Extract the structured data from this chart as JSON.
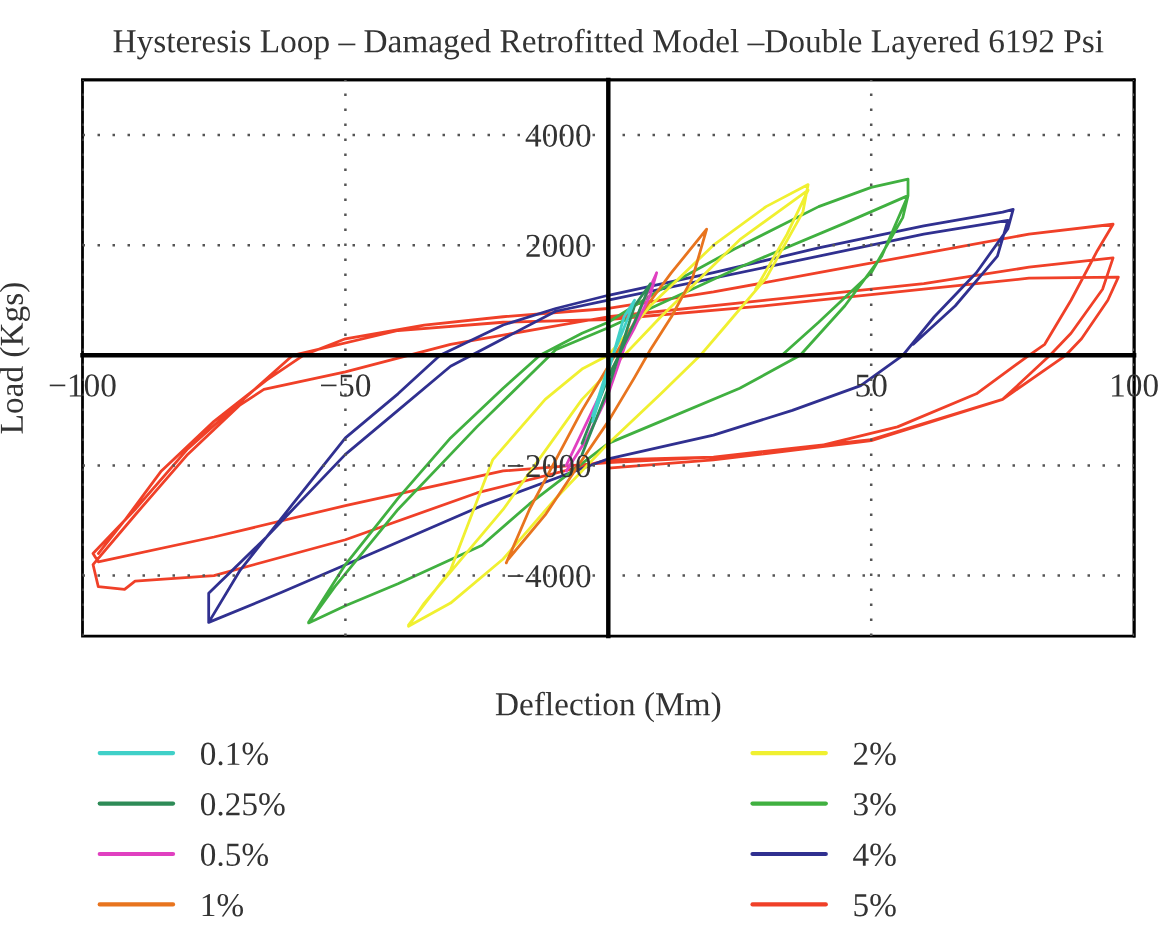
{
  "chart_data": {
    "type": "line",
    "title": "Hysteresis Loop – Damaged Retrofitted Model –Double Layered 6192 Psi",
    "xlabel": "Deflection (Mm)",
    "ylabel": "Load (Kgs)",
    "xlim": [
      -100,
      100
    ],
    "ylim": [
      -5100,
      5000
    ],
    "xticks": [
      {
        "value": -100,
        "label": "−100"
      },
      {
        "value": -50,
        "label": "−50"
      },
      50,
      100
    ],
    "yticks": [
      {
        "value": -4000,
        "label": "−4000"
      },
      {
        "value": -2000,
        "label": "−2000"
      },
      2000,
      4000
    ],
    "grid": true,
    "legend": "bottom",
    "marker": "none",
    "line_style": "solid",
    "series": [
      {
        "name": "0.1%",
        "color": "#40d0c8",
        "x": [
          -3,
          0,
          3,
          5,
          3,
          0,
          -3
        ],
        "values": [
          -1200,
          -300,
          700,
          1000,
          500,
          -200,
          -1100
        ]
      },
      {
        "name": "0.25%",
        "color": "#2e8b57",
        "x": [
          -5,
          0,
          5,
          8,
          5,
          0,
          -5
        ],
        "values": [
          -1800,
          -600,
          900,
          1300,
          600,
          -400,
          -1600
        ]
      },
      {
        "name": "0.5%",
        "color": "#e040c0",
        "x": [
          -8,
          -4,
          0,
          4,
          9.2,
          8,
          5,
          1,
          -3,
          -8
        ],
        "values": [
          -2100,
          -1500,
          -700,
          400,
          1500,
          1100,
          500,
          -200,
          -1000,
          -2000
        ]
      },
      {
        "name": "1%",
        "color": "#e8741e",
        "x": [
          -19.4,
          -15,
          -10,
          -5,
          0,
          5,
          12,
          18.7,
          16,
          12,
          8,
          5,
          0,
          -5,
          -12,
          -19
        ],
        "values": [
          -3770,
          -2800,
          -1900,
          -1000,
          -200,
          600,
          1500,
          2290,
          1400,
          700,
          100,
          -400,
          -1200,
          -1900,
          -2900,
          -3700
        ]
      },
      {
        "name": "2%",
        "color": "#f0f030",
        "x": [
          -38,
          -30,
          -22,
          -12,
          -5,
          0,
          8,
          20,
          30,
          38,
          37,
          30,
          22,
          17.5,
          10,
          0,
          -10,
          -20,
          -30,
          -38,
          -35,
          -20,
          -5,
          10,
          25,
          38,
          34,
          28
        ],
        "values": [
          -4900,
          -3900,
          -1900,
          -800,
          -250,
          0,
          900,
          2000,
          2700,
          3100,
          2600,
          1400,
          500,
          0,
          -700,
          -1600,
          -2600,
          -3700,
          -4500,
          -4920,
          -4500,
          -2800,
          -800,
          700,
          2100,
          3000,
          2200,
          1200
        ]
      },
      {
        "name": "3%",
        "color": "#40b040",
        "x": [
          -57,
          -50,
          -40,
          -30,
          -20,
          -13,
          -5,
          0,
          10,
          24,
          40,
          50,
          57,
          57,
          52,
          45,
          36.5,
          25,
          10,
          0,
          -15,
          -24,
          -40,
          -50,
          -57,
          -52,
          -40,
          -25,
          -10,
          0,
          25,
          45,
          57,
          56,
          50,
          40,
          33
        ],
        "values": [
          -4850,
          -3800,
          -2600,
          -1500,
          -600,
          0,
          400,
          600,
          1200,
          1930,
          2700,
          3050,
          3200,
          2900,
          1800,
          900,
          0,
          -600,
          -1200,
          -1600,
          -2700,
          -3450,
          -4150,
          -4550,
          -4860,
          -4200,
          -2800,
          -1300,
          100,
          500,
          1600,
          2400,
          2900,
          2500,
          1500,
          600,
          0
        ]
      },
      {
        "name": "4%",
        "color": "#303090",
        "x": [
          -76,
          -70,
          -60,
          -50,
          -40,
          -32,
          -20,
          -10,
          0,
          20,
          40,
          60,
          75,
          77,
          76,
          70,
          62,
          56,
          48,
          35,
          20,
          0,
          -24,
          -45,
          -62,
          -76,
          -76,
          -65,
          -50,
          -40,
          -30,
          -10,
          0,
          30,
          60,
          76,
          74,
          66,
          58
        ],
        "values": [
          -4850,
          -3900,
          -2700,
          -1500,
          -700,
          0,
          550,
          850,
          1090,
          1500,
          1950,
          2350,
          2600,
          2650,
          2300,
          1500,
          700,
          0,
          -550,
          -1000,
          -1450,
          -1880,
          -2730,
          -3600,
          -4300,
          -4850,
          -4320,
          -3300,
          -1800,
          -1000,
          -200,
          800,
          1000,
          1600,
          2200,
          2450,
          1800,
          900,
          200
        ]
      },
      {
        "name": "5%",
        "color": "#f04028",
        "x": [
          -97,
          -92,
          -85,
          -75,
          -65,
          -58,
          -50,
          -35,
          -20,
          0,
          20,
          40,
          60,
          80,
          96,
          93,
          88,
          83,
          80,
          70,
          55,
          40,
          20,
          0,
          -25,
          -50,
          -75,
          -90,
          -92,
          -97,
          -98,
          -90,
          -80,
          -70,
          -65.5,
          -50,
          -30,
          0,
          30,
          60,
          80,
          96,
          94,
          88,
          84,
          75,
          50,
          20,
          0,
          -20,
          -50,
          -75,
          -97,
          -98,
          -90,
          -80,
          -60,
          -40,
          -20,
          0,
          30,
          60,
          80,
          97,
          95,
          90,
          87,
          75,
          50,
          20,
          0
        ],
        "values": [
          -3600,
          -3000,
          -2100,
          -1200,
          -450,
          0,
          300,
          550,
          700,
          850,
          1150,
          1500,
          1850,
          2200,
          2380,
          1900,
          1000,
          200,
          0,
          -700,
          -1300,
          -1650,
          -1850,
          -1900,
          -2500,
          -3350,
          -4000,
          -4100,
          -4250,
          -4200,
          -3800,
          -2900,
          -1800,
          -900,
          -620,
          -300,
          200,
          700,
          1000,
          1300,
          1600,
          1770,
          1200,
          400,
          0,
          -800,
          -1530,
          -1850,
          -1950,
          -2100,
          -2730,
          -3300,
          -3750,
          -3600,
          -2800,
          -1700,
          0,
          450,
          600,
          650,
          900,
          1200,
          1400,
          1420,
          1000,
          300,
          0,
          -800,
          -1550,
          -1900,
          -2050
        ]
      }
    ]
  }
}
